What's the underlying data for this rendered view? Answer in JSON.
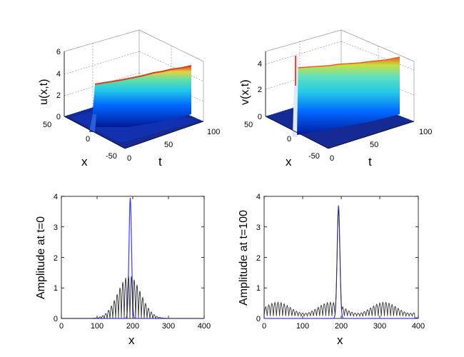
{
  "figure": {
    "caption": ""
  },
  "chart_data": [
    {
      "type": "surface",
      "id": "u3d",
      "zlabel": "u(x,t)",
      "xlabel": "x",
      "tlabel": "t",
      "zticks": [
        "0",
        "2",
        "4",
        "6"
      ],
      "xticks": [
        "50",
        "0",
        "-50"
      ],
      "tticks": [
        "0",
        "50",
        "100"
      ],
      "zlim": [
        0,
        6
      ],
      "xlim": [
        -50,
        50
      ],
      "tlim": [
        0,
        100
      ],
      "ridge_height": 3.5,
      "ridge_x": 0
    },
    {
      "type": "surface",
      "id": "v3d",
      "zlabel": "v(x,t)",
      "xlabel": "x",
      "tlabel": "t",
      "zticks": [
        "0",
        "2",
        "4"
      ],
      "xticks": [
        "50",
        "0",
        "-50"
      ],
      "tticks": [
        "0",
        "50",
        "100"
      ],
      "zlim": [
        0,
        4.5
      ],
      "xlim": [
        -50,
        50
      ],
      "tlim": [
        0,
        100
      ],
      "ridge_height": 3.3,
      "ridge_x": 0
    },
    {
      "type": "line",
      "id": "amp0",
      "xlabel": "x",
      "ylabel": "Amplitude at t=0",
      "xticks": [
        "0",
        "100",
        "200",
        "300",
        "400"
      ],
      "yticks": [
        "0",
        "1",
        "2",
        "3",
        "4"
      ],
      "xlim": [
        0,
        400
      ],
      "ylim": [
        0,
        4
      ],
      "series": [
        {
          "name": "blue",
          "color": "#3b3bff",
          "peak_x": 193,
          "peak_y": 3.95,
          "width": 5
        },
        {
          "name": "black",
          "color": "#333333",
          "center": 190,
          "envelope": 1.4,
          "spread": 45,
          "period": 8
        }
      ]
    },
    {
      "type": "line",
      "id": "amp100",
      "xlabel": "x",
      "ylabel": "Amplitude at t=100",
      "xticks": [
        "0",
        "100",
        "200",
        "300",
        "400"
      ],
      "yticks": [
        "0",
        "1",
        "2",
        "3",
        "4"
      ],
      "xlim": [
        0,
        400
      ],
      "ylim": [
        0,
        4
      ],
      "series": [
        {
          "name": "blue",
          "color": "#3b3bff",
          "peak_x": 193,
          "peak_y": 3.7,
          "width": 5
        },
        {
          "name": "black",
          "color": "#333333",
          "peak_x": 193,
          "peak_y": 3.55,
          "background": 0.45,
          "period": 8
        }
      ]
    }
  ]
}
